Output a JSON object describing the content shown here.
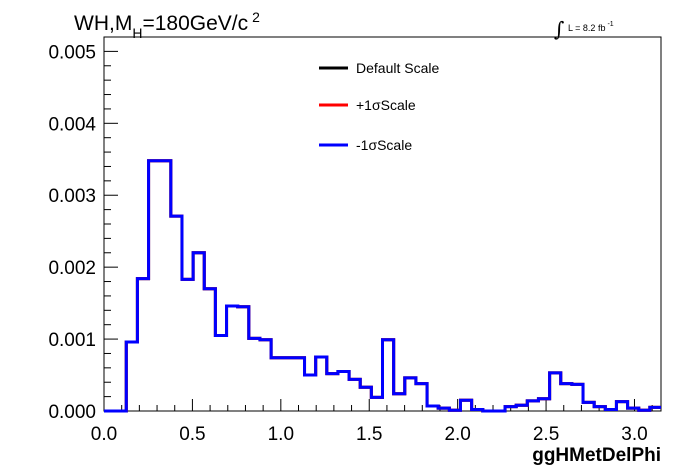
{
  "chart_data": {
    "type": "step",
    "title": {
      "prefix": "WH,M",
      "subscript": "H",
      "value": "=180GeV/c",
      "superscript": "2"
    },
    "lumi": {
      "integral": "∫",
      "text": "L = 8.2 fb",
      "superscript": "-1"
    },
    "xlabel": "ggHMetDelPhi",
    "xlim": [
      0.0,
      3.15
    ],
    "ylim": [
      0.0,
      0.0052
    ],
    "x_ticks": [
      "0.0",
      "0.5",
      "1.0",
      "1.5",
      "2.0",
      "2.5",
      "3.0"
    ],
    "x_tick_values": [
      0.0,
      0.5,
      1.0,
      1.5,
      2.0,
      2.5,
      3.0
    ],
    "y_ticks": [
      "0.000",
      "0.001",
      "0.002",
      "0.003",
      "0.004",
      "0.005"
    ],
    "y_tick_values": [
      0.0,
      0.001,
      0.002,
      0.003,
      0.004,
      0.005
    ],
    "bin_edges": [
      0.0,
      0.0315,
      0.063,
      0.0945,
      0.126,
      0.1575,
      0.189,
      0.2205,
      0.252,
      0.2835,
      0.315,
      0.3465,
      0.378,
      0.4095,
      0.441,
      0.4725,
      0.504,
      0.5355,
      0.567,
      0.5985,
      0.63,
      0.6615,
      0.693,
      0.7245,
      0.756,
      0.7875,
      0.819,
      0.8505,
      0.882,
      0.9135,
      0.945,
      0.9765,
      1.008,
      1.0395,
      1.071,
      1.1025,
      1.134,
      1.1655,
      1.197,
      1.2285,
      1.26,
      1.2915,
      1.323,
      1.3545,
      1.386,
      1.4175,
      1.449,
      1.4805,
      1.512,
      1.5435,
      1.575,
      1.6065,
      1.638,
      1.6695,
      1.701,
      1.7325,
      1.764,
      1.7955,
      1.827,
      1.8585,
      1.89,
      1.9215,
      1.953,
      1.9845,
      2.016,
      2.0475,
      2.079,
      2.1105,
      2.142,
      2.1735,
      2.205,
      2.2365,
      2.268,
      2.2995,
      2.331,
      2.3625,
      2.394,
      2.4255,
      2.457,
      2.4885,
      2.52,
      2.5515,
      2.583,
      2.6145,
      2.646,
      2.6775,
      2.709,
      2.7405,
      2.772,
      2.8035,
      2.835,
      2.8665,
      2.898,
      2.9295,
      2.961,
      2.9925,
      3.024,
      3.0555,
      3.087,
      3.1185,
      3.15
    ],
    "series": [
      {
        "name": "Default Scale",
        "color": "#000000",
        "values": [
          0.0,
          0.0,
          0.0,
          0.0,
          0.00096,
          0.00096,
          0.00184,
          0.00184,
          0.00348,
          0.00348,
          0.00348,
          0.00348,
          0.00271,
          0.00271,
          0.00183,
          0.00183,
          0.0022,
          0.0022,
          0.0017,
          0.0017,
          0.00105,
          0.00105,
          0.00146,
          0.00146,
          0.00145,
          0.00145,
          0.00101,
          0.00101,
          0.00099,
          0.00099,
          0.00074,
          0.00074,
          0.00074,
          0.00074,
          0.00074,
          0.00074,
          0.0005,
          0.0005,
          0.00075,
          0.00075,
          0.00052,
          0.00052,
          0.00055,
          0.00055,
          0.00044,
          0.00044,
          0.00033,
          0.00033,
          0.00019,
          0.00019,
          0.00099,
          0.00099,
          0.00024,
          0.00024,
          0.00046,
          0.00046,
          0.00038,
          0.00038,
          7e-05,
          7e-05,
          4e-05,
          4e-05,
          1e-05,
          1e-05,
          0.00015,
          0.00015,
          2e-05,
          2e-05,
          0.0,
          0.0,
          0.0,
          0.0,
          6e-05,
          6e-05,
          8e-05,
          8e-05,
          0.00014,
          0.00014,
          0.00017,
          0.00017,
          0.00053,
          0.00053,
          0.00038,
          0.00038,
          0.00037,
          0.00037,
          0.00012,
          0.00012,
          6e-05,
          6e-05,
          2e-05,
          2e-05,
          0.00013,
          0.00013,
          4e-05,
          4e-05,
          1e-05,
          1e-05,
          5e-05,
          5e-05
        ]
      },
      {
        "name": "+1σScale",
        "color": "#ff0000",
        "values": [
          0.0,
          0.0,
          0.0,
          0.0,
          0.00096,
          0.00096,
          0.00184,
          0.00184,
          0.00348,
          0.00348,
          0.00348,
          0.00348,
          0.00271,
          0.00271,
          0.00183,
          0.00183,
          0.0022,
          0.0022,
          0.0017,
          0.0017,
          0.00105,
          0.00105,
          0.00146,
          0.00146,
          0.00145,
          0.00145,
          0.00101,
          0.00101,
          0.00099,
          0.00099,
          0.00074,
          0.00074,
          0.00074,
          0.00074,
          0.00074,
          0.00074,
          0.0005,
          0.0005,
          0.00075,
          0.00075,
          0.00052,
          0.00052,
          0.00055,
          0.00055,
          0.00044,
          0.00044,
          0.00033,
          0.00033,
          0.00019,
          0.00019,
          0.00099,
          0.00099,
          0.00024,
          0.00024,
          0.00046,
          0.00046,
          0.00038,
          0.00038,
          7e-05,
          7e-05,
          4e-05,
          4e-05,
          1e-05,
          1e-05,
          0.00015,
          0.00015,
          2e-05,
          2e-05,
          0.0,
          0.0,
          0.0,
          0.0,
          6e-05,
          6e-05,
          8e-05,
          8e-05,
          0.00014,
          0.00014,
          0.00017,
          0.00017,
          0.00053,
          0.00053,
          0.00038,
          0.00038,
          0.00037,
          0.00037,
          0.00012,
          0.00012,
          6e-05,
          6e-05,
          2e-05,
          2e-05,
          0.00013,
          0.00013,
          4e-05,
          4e-05,
          1e-05,
          1e-05,
          5e-05,
          5e-05
        ]
      },
      {
        "name": "-1σScale",
        "color": "#0000ff",
        "values": [
          0.0,
          0.0,
          0.0,
          0.0,
          0.00096,
          0.00096,
          0.00184,
          0.00184,
          0.00348,
          0.00348,
          0.00348,
          0.00348,
          0.00271,
          0.00271,
          0.00183,
          0.00183,
          0.0022,
          0.0022,
          0.0017,
          0.0017,
          0.00105,
          0.00105,
          0.00146,
          0.00146,
          0.00145,
          0.00145,
          0.00101,
          0.00101,
          0.00099,
          0.00099,
          0.00074,
          0.00074,
          0.00074,
          0.00074,
          0.00074,
          0.00074,
          0.0005,
          0.0005,
          0.00075,
          0.00075,
          0.00052,
          0.00052,
          0.00055,
          0.00055,
          0.00044,
          0.00044,
          0.00033,
          0.00033,
          0.00019,
          0.00019,
          0.00099,
          0.00099,
          0.00024,
          0.00024,
          0.00046,
          0.00046,
          0.00038,
          0.00038,
          7e-05,
          7e-05,
          4e-05,
          4e-05,
          1e-05,
          1e-05,
          0.00015,
          0.00015,
          2e-05,
          2e-05,
          0.0,
          0.0,
          0.0,
          0.0,
          6e-05,
          6e-05,
          8e-05,
          8e-05,
          0.00014,
          0.00014,
          0.00017,
          0.00017,
          0.00053,
          0.00053,
          0.00038,
          0.00038,
          0.00037,
          0.00037,
          0.00012,
          0.00012,
          6e-05,
          6e-05,
          2e-05,
          2e-05,
          0.00013,
          0.00013,
          4e-05,
          4e-05,
          1e-05,
          1e-05,
          5e-05,
          5e-05
        ]
      }
    ],
    "legend": [
      "Default Scale",
      "+1σScale",
      "-1σScale"
    ],
    "legend_position": "top-center",
    "grid": false
  }
}
